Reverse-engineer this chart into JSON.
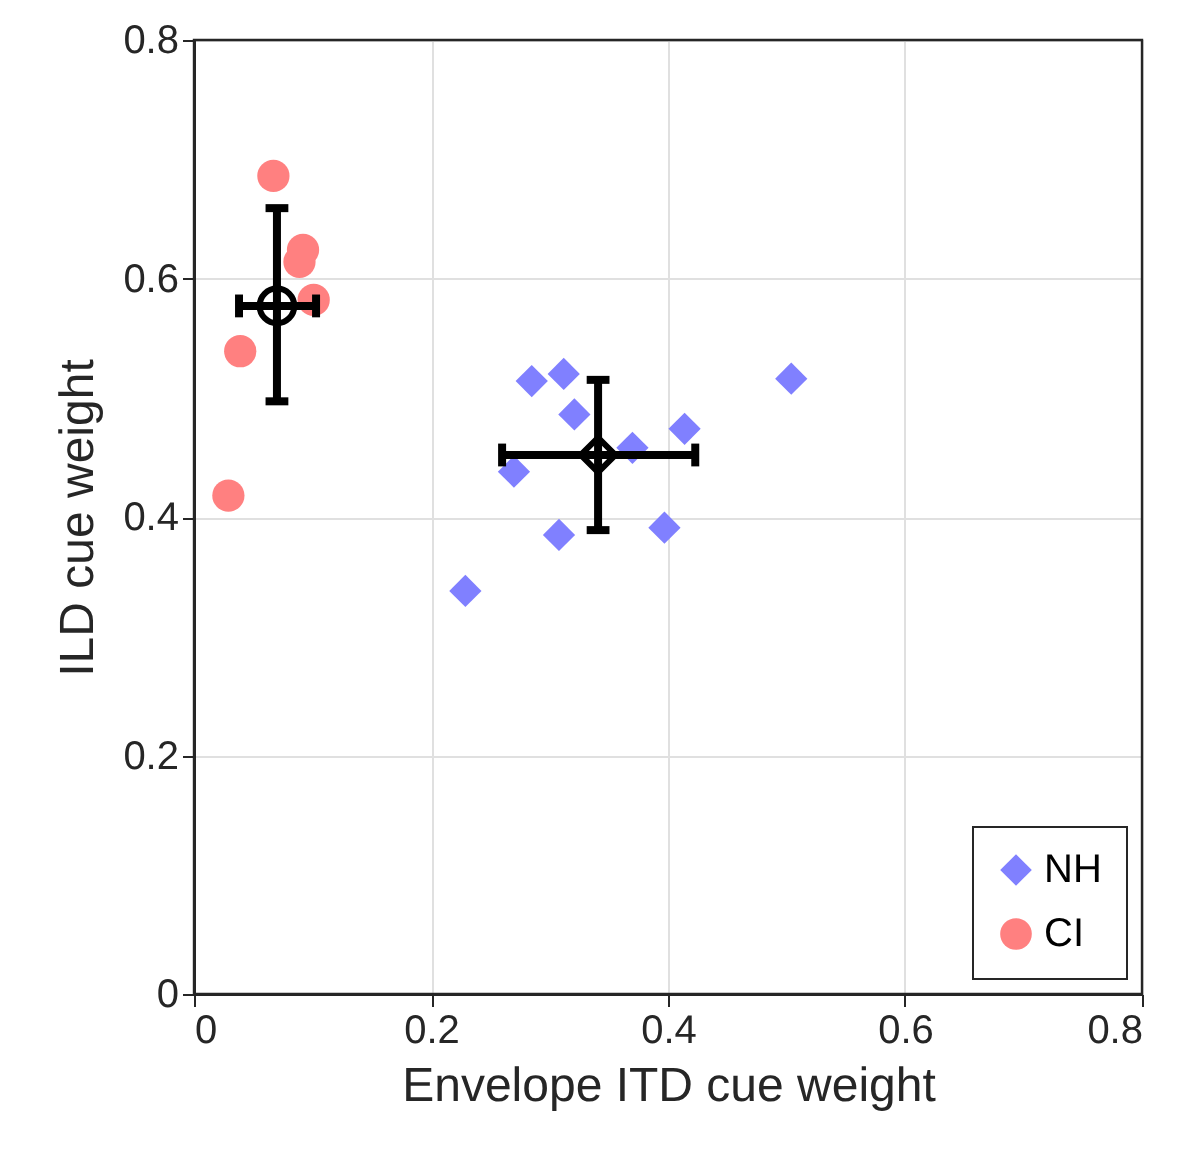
{
  "chart_data": {
    "type": "scatter",
    "xlabel": "Envelope ITD cue weight",
    "ylabel": "ILD cue weight",
    "xlim": [
      0,
      0.8
    ],
    "ylim": [
      0,
      0.8
    ],
    "xticks": [
      0,
      0.2,
      0.4,
      0.6,
      0.8
    ],
    "yticks": [
      0,
      0.2,
      0.4,
      0.6,
      0.8
    ],
    "grid": true,
    "legend": "bottom right",
    "series": [
      {
        "name": "NH",
        "color": "#8080ff",
        "marker": "diamond",
        "x": [
          0.285,
          0.312,
          0.321,
          0.27,
          0.37,
          0.414,
          0.504,
          0.308,
          0.397,
          0.229
        ],
        "values": [
          0.514,
          0.52,
          0.486,
          0.438,
          0.458,
          0.474,
          0.516,
          0.385,
          0.391,
          0.338
        ]
      },
      {
        "name": "CI",
        "color": "#ff8080",
        "marker": "circle",
        "x": [
          0.067,
          0.092,
          0.089,
          0.101,
          0.039,
          0.029
        ],
        "values": [
          0.686,
          0.624,
          0.614,
          0.582,
          0.539,
          0.418
        ]
      },
      {
        "color": "#000000",
        "marker": "diamond",
        "x": [
          0.341
        ],
        "values": [
          0.452
        ],
        "errors": [
          [
            0.389,
            0.515
          ]
        ],
        "xerrors": [
          [
            0.26,
            0.423
          ]
        ]
      },
      {
        "color": "#000000",
        "marker": "circle",
        "x": [
          0.07
        ],
        "values": [
          0.577
        ],
        "errors": [
          [
            0.497,
            0.659
          ]
        ],
        "xerrors": [
          [
            0.038,
            0.103
          ]
        ]
      }
    ]
  }
}
